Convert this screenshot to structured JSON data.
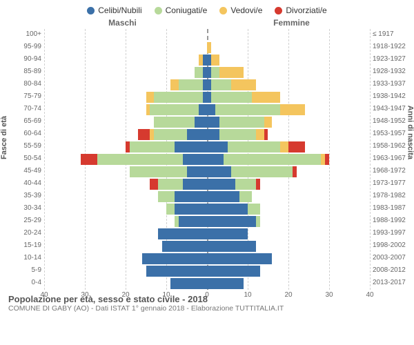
{
  "legend": [
    {
      "label": "Celibi/Nubili",
      "color": "#3b70a8"
    },
    {
      "label": "Coniugati/e",
      "color": "#b7d99a"
    },
    {
      "label": "Vedovi/e",
      "color": "#f4c55e"
    },
    {
      "label": "Divorziati/e",
      "color": "#d63a2f"
    }
  ],
  "gender_left": "Maschi",
  "gender_right": "Femmine",
  "ylabel_left": "Fasce di età",
  "ylabel_right": "Anni di nascita",
  "xmax": 40,
  "xticks": [
    40,
    30,
    20,
    10,
    0,
    10,
    20,
    30,
    40
  ],
  "rows": [
    {
      "age": "100+",
      "birth": "≤ 1917",
      "m": [
        0,
        0,
        0,
        0
      ],
      "f": [
        0,
        0,
        0,
        0
      ]
    },
    {
      "age": "95-99",
      "birth": "1918-1922",
      "m": [
        0,
        0,
        0,
        0
      ],
      "f": [
        0,
        0,
        1,
        0
      ]
    },
    {
      "age": "90-94",
      "birth": "1923-1927",
      "m": [
        1,
        0,
        1,
        0
      ],
      "f": [
        1,
        0,
        2,
        0
      ]
    },
    {
      "age": "85-89",
      "birth": "1928-1932",
      "m": [
        1,
        2,
        0,
        0
      ],
      "f": [
        1,
        2,
        6,
        0
      ]
    },
    {
      "age": "80-84",
      "birth": "1933-1937",
      "m": [
        1,
        6,
        2,
        0
      ],
      "f": [
        1,
        5,
        6,
        0
      ]
    },
    {
      "age": "75-79",
      "birth": "1938-1942",
      "m": [
        1,
        12,
        2,
        0
      ],
      "f": [
        1,
        10,
        7,
        0
      ]
    },
    {
      "age": "70-74",
      "birth": "1943-1947",
      "m": [
        2,
        12,
        1,
        0
      ],
      "f": [
        2,
        16,
        6,
        0
      ]
    },
    {
      "age": "65-69",
      "birth": "1948-1952",
      "m": [
        3,
        10,
        0,
        0
      ],
      "f": [
        3,
        11,
        2,
        0
      ]
    },
    {
      "age": "60-64",
      "birth": "1953-1957",
      "m": [
        5,
        8,
        1,
        3
      ],
      "f": [
        3,
        9,
        2,
        1
      ]
    },
    {
      "age": "55-59",
      "birth": "1958-1962",
      "m": [
        8,
        11,
        0,
        1
      ],
      "f": [
        5,
        13,
        2,
        4
      ]
    },
    {
      "age": "50-54",
      "birth": "1963-1967",
      "m": [
        6,
        21,
        0,
        4
      ],
      "f": [
        4,
        24,
        1,
        1
      ]
    },
    {
      "age": "45-49",
      "birth": "1968-1972",
      "m": [
        5,
        14,
        0,
        0
      ],
      "f": [
        6,
        15,
        0,
        1
      ]
    },
    {
      "age": "40-44",
      "birth": "1973-1977",
      "m": [
        6,
        6,
        0,
        2
      ],
      "f": [
        7,
        5,
        0,
        1
      ]
    },
    {
      "age": "35-39",
      "birth": "1978-1982",
      "m": [
        8,
        4,
        0,
        0
      ],
      "f": [
        8,
        3,
        0,
        0
      ]
    },
    {
      "age": "30-34",
      "birth": "1983-1987",
      "m": [
        8,
        2,
        0,
        0
      ],
      "f": [
        10,
        3,
        0,
        0
      ]
    },
    {
      "age": "25-29",
      "birth": "1988-1992",
      "m": [
        7,
        1,
        0,
        0
      ],
      "f": [
        12,
        1,
        0,
        0
      ]
    },
    {
      "age": "20-24",
      "birth": "1993-1997",
      "m": [
        12,
        0,
        0,
        0
      ],
      "f": [
        10,
        0,
        0,
        0
      ]
    },
    {
      "age": "15-19",
      "birth": "1998-2002",
      "m": [
        11,
        0,
        0,
        0
      ],
      "f": [
        12,
        0,
        0,
        0
      ]
    },
    {
      "age": "10-14",
      "birth": "2003-2007",
      "m": [
        16,
        0,
        0,
        0
      ],
      "f": [
        16,
        0,
        0,
        0
      ]
    },
    {
      "age": "5-9",
      "birth": "2008-2012",
      "m": [
        15,
        0,
        0,
        0
      ],
      "f": [
        13,
        0,
        0,
        0
      ]
    },
    {
      "age": "0-4",
      "birth": "2013-2017",
      "m": [
        9,
        0,
        0,
        0
      ],
      "f": [
        9,
        0,
        0,
        0
      ]
    }
  ],
  "footer_title": "Popolazione per età, sesso e stato civile - 2018",
  "footer_sub": "COMUNE DI GABY (AO) - Dati ISTAT 1° gennaio 2018 - Elaborazione TUTTITALIA.IT"
}
